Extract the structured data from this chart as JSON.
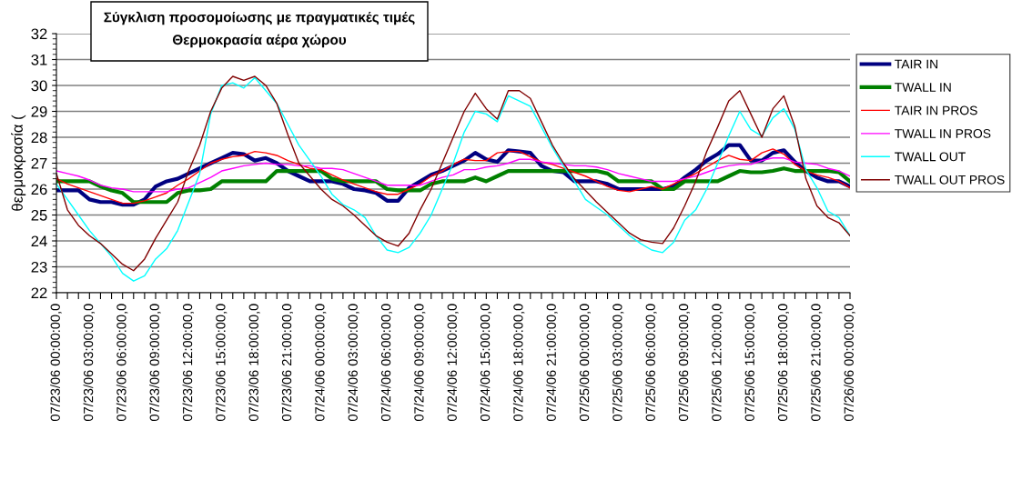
{
  "chart_data": {
    "type": "line",
    "title": "Σύγκλιση προσομοίωσης με πραγματικές τιμές",
    "subtitle": "Θερμοκρασία αέρα χώρου",
    "ylabel": "θερμοκρασία (",
    "categories": [
      "07/23/06 00:00:00,0",
      null,
      null,
      "07/23/06 03:00:00,0",
      null,
      null,
      "07/23/06 06:00:00,0",
      null,
      null,
      "07/23/06 09:00:00,0",
      null,
      null,
      "07/23/06 12:00:00,0",
      null,
      null,
      "07/23/06 15:00:00,0",
      null,
      null,
      "07/23/06 18:00:00,0",
      null,
      null,
      "07/23/06 21:00:00,0",
      null,
      null,
      "07/24/06 00:00:00,0",
      null,
      null,
      "07/24/06 03:00:00,0",
      null,
      null,
      "07/24/06 06:00:00,0",
      null,
      null,
      "07/24/06 09:00:00,0",
      null,
      null,
      "07/24/06 12:00:00,0",
      null,
      null,
      "07/24/06 15:00:00,0",
      null,
      null,
      "07/24/06 18:00:00,0",
      null,
      null,
      "07/24/06 21:00:00,0",
      null,
      null,
      "07/25/06 00:00:00,0",
      null,
      null,
      "07/25/06 03:00:00,0",
      null,
      null,
      "07/25/06 06:00:00,0",
      null,
      null,
      "07/25/06 09:00:00,0",
      null,
      null,
      "07/25/06 12:00:00,0",
      null,
      null,
      "07/25/06 15:00:00,0",
      null,
      null,
      "07/25/06 18:00:00,0",
      null,
      null,
      "07/25/06 21:00:00,0",
      null,
      null,
      "07/26/06 00:00:00,0"
    ],
    "series": [
      {
        "name": "TAIR IN",
        "color": "#000080",
        "values": [
          25.95,
          25.95,
          25.95,
          25.6,
          25.5,
          25.5,
          25.4,
          25.4,
          25.6,
          26.1,
          26.3,
          26.4,
          26.6,
          26.8,
          27.0,
          27.2,
          27.4,
          27.35,
          27.1,
          27.2,
          27.0,
          26.7,
          26.5,
          26.3,
          26.3,
          26.3,
          26.2,
          26.0,
          25.95,
          25.85,
          25.55,
          25.55,
          26.05,
          26.3,
          26.55,
          26.7,
          26.9,
          27.1,
          27.4,
          27.15,
          27.05,
          27.5,
          27.45,
          27.4,
          26.9,
          26.7,
          26.65,
          26.3,
          26.3,
          26.3,
          26.2,
          26.0,
          26.0,
          26.0,
          26.0,
          26.0,
          26.1,
          26.45,
          26.75,
          27.1,
          27.35,
          27.7,
          27.7,
          27.1,
          27.1,
          27.4,
          27.5,
          27.05,
          26.7,
          26.45,
          26.3,
          26.3,
          26.1
        ]
      },
      {
        "name": "TWALL IN",
        "color": "#008000",
        "values": [
          26.3,
          26.3,
          26.3,
          26.3,
          26.1,
          25.95,
          25.85,
          25.5,
          25.5,
          25.5,
          25.5,
          25.85,
          25.95,
          25.95,
          26.0,
          26.3,
          26.3,
          26.3,
          26.3,
          26.3,
          26.7,
          26.7,
          26.7,
          26.7,
          26.7,
          26.4,
          26.3,
          26.3,
          26.3,
          26.3,
          26.0,
          25.95,
          25.95,
          25.95,
          26.2,
          26.3,
          26.3,
          26.3,
          26.45,
          26.3,
          26.5,
          26.7,
          26.7,
          26.7,
          26.7,
          26.7,
          26.7,
          26.7,
          26.7,
          26.7,
          26.6,
          26.3,
          26.3,
          26.3,
          26.3,
          26.0,
          26.0,
          26.3,
          26.3,
          26.3,
          26.3,
          26.5,
          26.7,
          26.65,
          26.65,
          26.7,
          26.8,
          26.7,
          26.7,
          26.7,
          26.7,
          26.65,
          26.3
        ]
      },
      {
        "name": "TAIR IN PROS",
        "color": "#ff0000",
        "values": [
          26.4,
          26.2,
          26.05,
          25.9,
          25.75,
          25.6,
          25.45,
          25.45,
          25.55,
          25.7,
          25.85,
          26.15,
          26.4,
          26.7,
          27.0,
          27.15,
          27.25,
          27.3,
          27.45,
          27.4,
          27.3,
          27.1,
          26.95,
          26.8,
          26.75,
          26.55,
          26.35,
          26.2,
          26.05,
          25.9,
          25.8,
          25.8,
          26.0,
          26.2,
          26.5,
          26.7,
          26.95,
          27.15,
          27.1,
          27.1,
          27.4,
          27.45,
          27.45,
          27.25,
          27.05,
          26.95,
          26.8,
          26.65,
          26.5,
          26.3,
          26.1,
          25.95,
          25.9,
          26.0,
          26.1,
          26.0,
          26.2,
          26.4,
          26.6,
          26.85,
          27.1,
          27.3,
          27.15,
          27.1,
          27.4,
          27.55,
          27.35,
          26.95,
          26.7,
          26.55,
          26.45,
          26.3,
          26.05
        ]
      },
      {
        "name": "TWALL IN PROS",
        "color": "#ff00ff",
        "values": [
          26.7,
          26.6,
          26.5,
          26.35,
          26.15,
          26.05,
          26.0,
          25.9,
          25.9,
          25.9,
          25.9,
          26.0,
          26.05,
          26.25,
          26.45,
          26.7,
          26.8,
          26.9,
          26.95,
          27.0,
          26.95,
          26.95,
          26.9,
          26.9,
          26.8,
          26.8,
          26.75,
          26.6,
          26.45,
          26.3,
          26.15,
          26.15,
          26.15,
          26.15,
          26.3,
          26.45,
          26.55,
          26.75,
          26.75,
          26.85,
          26.9,
          27.0,
          27.15,
          27.15,
          27.05,
          27.0,
          26.95,
          26.9,
          26.9,
          26.85,
          26.75,
          26.6,
          26.5,
          26.4,
          26.3,
          26.3,
          26.3,
          26.4,
          26.5,
          26.65,
          26.8,
          26.9,
          26.95,
          26.95,
          27.1,
          27.2,
          27.2,
          27.05,
          27.0,
          26.95,
          26.8,
          26.7,
          26.5
        ]
      },
      {
        "name": "TWALL OUT",
        "color": "#00ffff",
        "values": [
          26.2,
          25.6,
          25.0,
          24.4,
          23.9,
          23.4,
          22.75,
          22.45,
          22.65,
          23.3,
          23.7,
          24.4,
          25.5,
          26.6,
          28.9,
          30.0,
          30.1,
          29.9,
          30.3,
          29.8,
          29.3,
          28.5,
          27.7,
          27.1,
          26.5,
          25.8,
          25.4,
          25.2,
          24.9,
          24.2,
          23.65,
          23.55,
          23.75,
          24.3,
          25.0,
          26.0,
          27.0,
          28.2,
          29.0,
          28.9,
          28.6,
          29.6,
          29.4,
          29.2,
          28.4,
          27.6,
          26.9,
          26.3,
          25.6,
          25.3,
          25.0,
          24.6,
          24.2,
          23.9,
          23.65,
          23.55,
          23.95,
          24.8,
          25.2,
          26.0,
          27.0,
          28.05,
          29.0,
          28.3,
          28.05,
          28.75,
          29.1,
          28.3,
          26.75,
          26.05,
          25.15,
          24.9,
          24.2
        ]
      },
      {
        "name": "TWALL OUT PROS",
        "color": "#800000",
        "values": [
          26.6,
          25.2,
          24.6,
          24.2,
          23.9,
          23.5,
          23.1,
          22.85,
          23.3,
          24.1,
          24.8,
          25.5,
          26.7,
          27.7,
          29.0,
          29.9,
          30.35,
          30.2,
          30.35,
          30.0,
          29.3,
          28.1,
          27.0,
          26.5,
          26.0,
          25.6,
          25.35,
          25.0,
          24.6,
          24.2,
          23.95,
          23.8,
          24.3,
          25.2,
          26.0,
          27.0,
          28.0,
          29.0,
          29.7,
          29.1,
          28.7,
          29.8,
          29.8,
          29.5,
          28.6,
          27.7,
          27.0,
          26.4,
          25.95,
          25.5,
          25.1,
          24.7,
          24.3,
          24.05,
          23.95,
          23.9,
          24.5,
          25.35,
          26.3,
          27.45,
          28.4,
          29.4,
          29.8,
          28.9,
          28.0,
          29.1,
          29.6,
          28.4,
          26.4,
          25.35,
          24.9,
          24.7,
          24.2
        ]
      }
    ],
    "ylim": [
      22,
      32
    ],
    "yticks": [
      22,
      23,
      24,
      25,
      26,
      27,
      28,
      29,
      30,
      31,
      32
    ],
    "grid": "y",
    "legend": "right"
  }
}
